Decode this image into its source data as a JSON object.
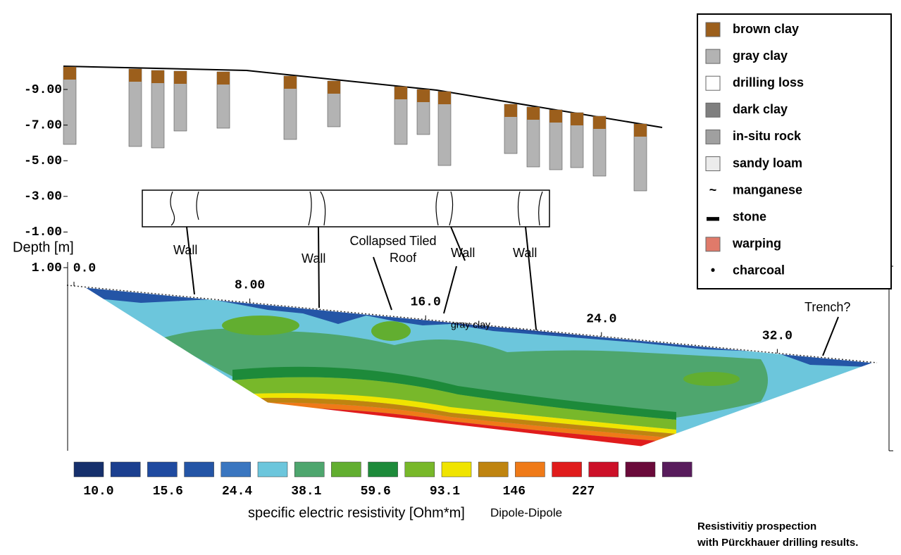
{
  "legend": {
    "items": [
      {
        "label": "brown clay",
        "color": "#9c5f1c"
      },
      {
        "label": "gray clay",
        "color": "#b3b3b3"
      },
      {
        "label": "drilling loss",
        "color": "#ffffff"
      },
      {
        "label": "dark clay",
        "color": "#7f7f7f"
      },
      {
        "label": "in-situ rock",
        "color": "#a0a0a0"
      },
      {
        "label": "sandy loam",
        "color": "#ececec"
      },
      {
        "label": "manganese",
        "symbol": "~"
      },
      {
        "label": "stone",
        "symbol": "▬"
      },
      {
        "label": "warping",
        "color": "#e07a6a"
      },
      {
        "label": "charcoal",
        "symbol": "•"
      }
    ]
  },
  "depth_axis": {
    "title": "Depth [m]",
    "ticks": [
      {
        "value": 1,
        "label": "1.00"
      },
      {
        "value": -1,
        "label": "-1.00"
      },
      {
        "value": -3,
        "label": "-3.00"
      },
      {
        "value": -5,
        "label": "-5.00"
      },
      {
        "value": -7,
        "label": "-7.00"
      },
      {
        "value": -9,
        "label": "-9.00"
      }
    ]
  },
  "distance_axis": {
    "ticks": [
      {
        "value": 0,
        "label": "0.0"
      },
      {
        "value": 8,
        "label": "8.00"
      },
      {
        "value": 16,
        "label": "16.0"
      },
      {
        "value": 24,
        "label": "24.0"
      },
      {
        "value": 32,
        "label": "32.0"
      }
    ]
  },
  "annotations": {
    "walls": [
      "Wall",
      "Wall",
      "Wall",
      "Wall"
    ],
    "roof": [
      "Collapsed Tiled",
      "Roof"
    ],
    "layer": "gray clay",
    "trench": "Trench?"
  },
  "color_scale": {
    "colors": [
      "#16306c",
      "#1b3f8f",
      "#1f4aa0",
      "#2455a6",
      "#3a76c0",
      "#6cc6dc",
      "#4ea66e",
      "#62ae30",
      "#1d8a3a",
      "#78b82a",
      "#f0e400",
      "#bf8410",
      "#ef7a18",
      "#e01c1c",
      "#cc1028",
      "#6a0a3a",
      "#581c5c"
    ],
    "labels": [
      "10.0",
      "15.6",
      "24.4",
      "38.1",
      "59.6",
      "93.1",
      "146",
      "227"
    ],
    "title": "specific electric resistivity [Ohm*m]",
    "method": "Dipole-Dipole"
  },
  "caption": [
    "Resistivitiy prospection",
    "with Pürckhauer drilling results."
  ]
}
